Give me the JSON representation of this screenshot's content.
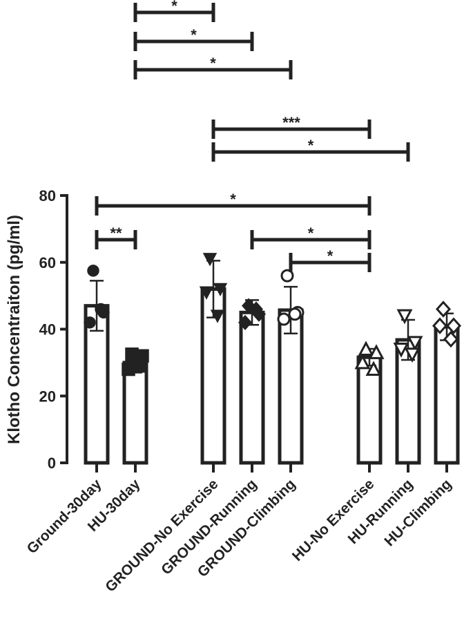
{
  "chart_data": {
    "type": "bar",
    "y_label": "Klotho Concentraiton (pg/ml)",
    "categories": [
      "Ground-30day",
      "HU-30day",
      "GROUND-No Exercise",
      "GROUND-Running",
      "GROUND-Climbing",
      "HU-No Exercise",
      "HU-Running",
      "HU-Climbing"
    ],
    "values": [
      47,
      30,
      52,
      45,
      45.7,
      31.6,
      36.8,
      40.7
    ],
    "errors": [
      7.5,
      3,
      8.5,
      3.7,
      7,
      2.5,
      6,
      4
    ],
    "points": [
      [
        57.5,
        45,
        42,
        46
      ],
      [
        32.5,
        32,
        28,
        29
      ],
      [
        61,
        52,
        51,
        44
      ],
      [
        47,
        44.5,
        42,
        46
      ],
      [
        56,
        45,
        43,
        44.5
      ],
      [
        34,
        33,
        30,
        28
      ],
      [
        44,
        36,
        34,
        32.5
      ],
      [
        46,
        41,
        41,
        37
      ]
    ],
    "markers": [
      "circle-filled",
      "square-filled",
      "triangle-down-filled",
      "diamond-filled",
      "circle-open",
      "triangle-up-open",
      "triangle-down-open",
      "diamond-open"
    ],
    "color": "#222222",
    "ylim": [
      0,
      80
    ],
    "yticks": [
      0,
      20,
      40,
      60,
      80
    ],
    "comparisons": [
      {
        "groups": [
          1,
          2
        ],
        "label": "*"
      },
      {
        "groups": [
          1,
          3
        ],
        "label": "*"
      },
      {
        "groups": [
          1,
          4
        ],
        "label": "*"
      },
      {
        "groups": [
          2,
          5
        ],
        "label": "***"
      },
      {
        "groups": [
          2,
          6
        ],
        "label": "*"
      },
      {
        "groups": [
          0,
          5
        ],
        "label": "*"
      },
      {
        "groups": [
          0,
          1
        ],
        "label": "**"
      },
      {
        "groups": [
          3,
          5
        ],
        "label": "*"
      },
      {
        "groups": [
          4,
          5
        ],
        "label": "*"
      }
    ]
  }
}
